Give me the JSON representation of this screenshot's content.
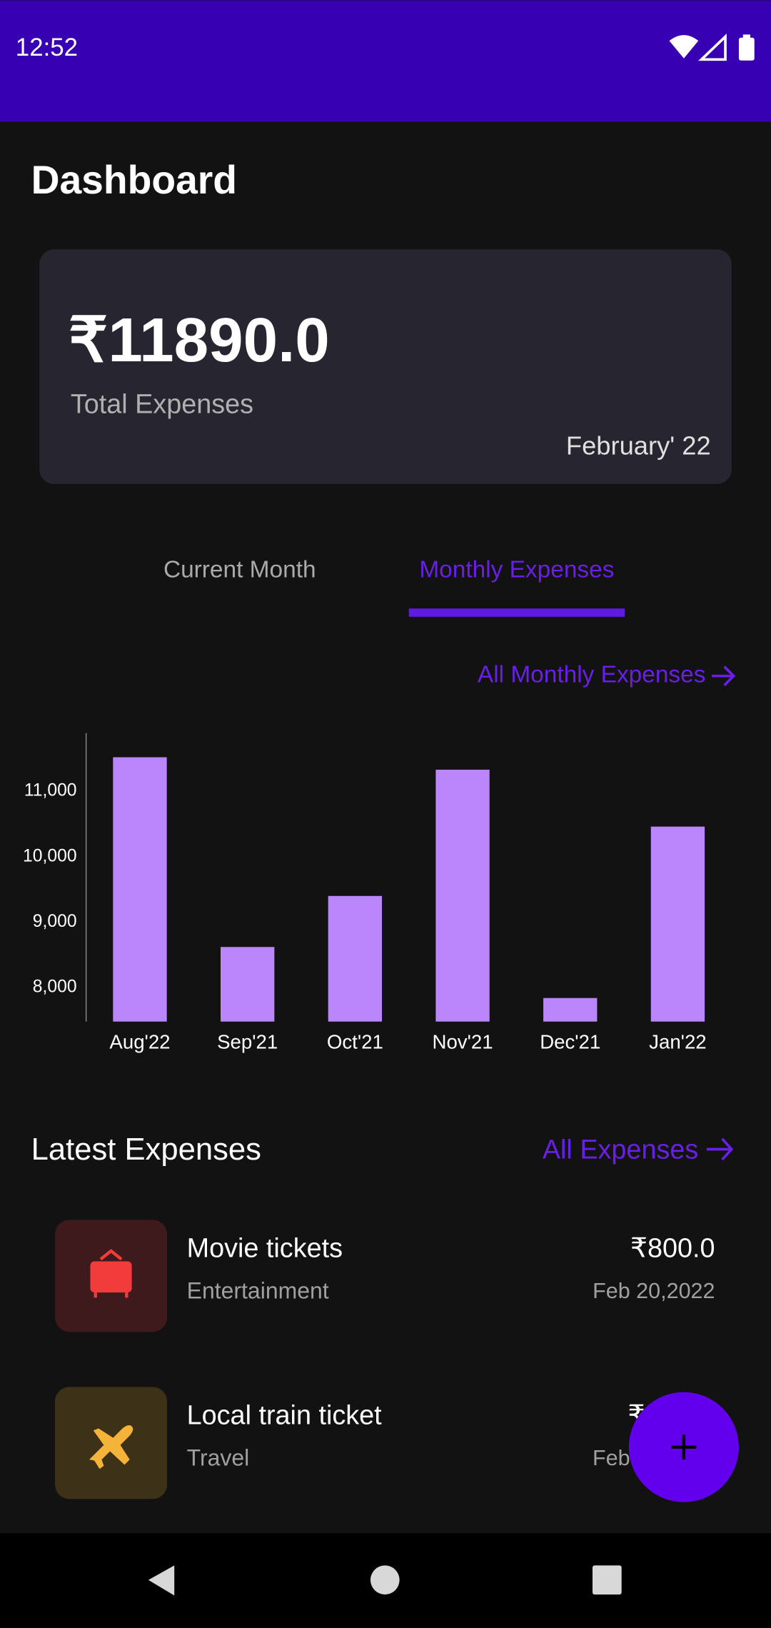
{
  "status_bar": {
    "time": "12:52"
  },
  "header": {
    "title": "Dashboard"
  },
  "summary_card": {
    "amount": "₹11890.0",
    "label": "Total Expenses",
    "period": "February' 22"
  },
  "tabs": [
    "Current Month",
    "Monthly Expenses"
  ],
  "chart_link": "All Monthly Expenses",
  "chart_data": {
    "type": "bar",
    "categories": [
      "Aug'22",
      "Sep'21",
      "Oct'21",
      "Nov'21",
      "Dec'21",
      "Jan'22"
    ],
    "values": [
      11520,
      8620,
      9400,
      11330,
      7840,
      10460
    ],
    "color": "#bb86fc",
    "ylim": [
      7480,
      11890
    ],
    "yticks": [
      {
        "value": 8000,
        "label": "8,000"
      },
      {
        "value": 9000,
        "label": "9,000"
      },
      {
        "value": 10000,
        "label": "10,000"
      },
      {
        "value": 11000,
        "label": "11,000"
      }
    ],
    "grid": false
  },
  "latest": {
    "title": "Latest Expenses",
    "link": "All Expenses",
    "items": [
      {
        "title": "Movie tickets",
        "category": "Entertainment",
        "amount": "₹800.0",
        "date": "Feb 20,2022"
      },
      {
        "title": "Local train ticket",
        "category": "Travel",
        "amount": "₹",
        "date": "Feb"
      }
    ]
  }
}
